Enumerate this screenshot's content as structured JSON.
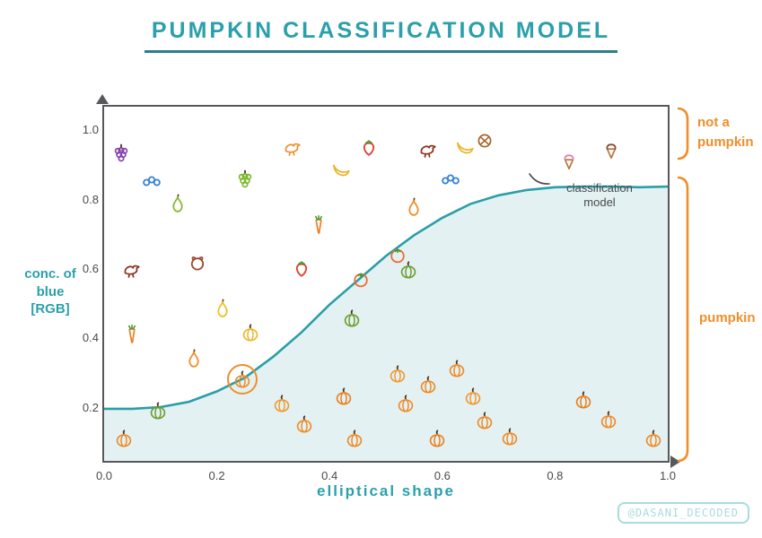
{
  "title": "PUMPKIN CLASSIFICATION MODEL",
  "watermark": "@DASANI_DECODED",
  "colors": {
    "accent_teal": "#2BA0AB",
    "curve_teal": "#2B9EA8",
    "curve_fill": "#E3F1F2",
    "bracket_orange": "#EF8F2A",
    "axis_gray": "#56585B",
    "tick_text": "#4A4A4A",
    "watermark_teal": "#A9DBDF"
  },
  "axes": {
    "x_label": "elliptical shape",
    "y_label_lines": [
      "conc. of",
      "blue",
      "[RGB]"
    ],
    "x_ticks": [
      {
        "label": "0.0",
        "value": 0.0
      },
      {
        "label": "0.2",
        "value": 0.2
      },
      {
        "label": "0.4",
        "value": 0.4
      },
      {
        "label": "0.6",
        "value": 0.6
      },
      {
        "label": "0.8",
        "value": 0.8
      },
      {
        "label": "1.0",
        "value": 1.0
      }
    ],
    "y_ticks": [
      {
        "label": "1.0",
        "value": 1.0
      },
      {
        "label": "0.8",
        "value": 0.8
      },
      {
        "label": "0.6",
        "value": 0.6
      },
      {
        "label": "0.4",
        "value": 0.4
      },
      {
        "label": "0.2",
        "value": 0.2
      }
    ]
  },
  "annotations": {
    "curve_label_lines": [
      "classification",
      "model"
    ]
  },
  "right_side": {
    "not_a_pumpkin_label_lines": [
      "not a",
      "pumpkin"
    ],
    "pumpkin_label": "pumpkin"
  },
  "chart_data": {
    "type": "scatter",
    "title": "PUMPKIN CLASSIFICATION MODEL",
    "xlabel": "elliptical shape",
    "ylabel": "conc. of blue [RGB]",
    "xlim": [
      0,
      1.0
    ],
    "ylim": [
      0,
      1.05
    ],
    "grid": false,
    "curve_style": {
      "color": "#2B9EA8",
      "fill": "#E3F1F2"
    },
    "curve": {
      "name": "classification model",
      "x": [
        0,
        0.05,
        0.1,
        0.15,
        0.2,
        0.25,
        0.3,
        0.35,
        0.4,
        0.45,
        0.5,
        0.55,
        0.6,
        0.65,
        0.7,
        0.75,
        0.8,
        0.85,
        0.9,
        0.95,
        1.0
      ],
      "y": [
        0.2,
        0.2,
        0.205,
        0.22,
        0.25,
        0.29,
        0.35,
        0.42,
        0.5,
        0.57,
        0.64,
        0.7,
        0.75,
        0.79,
        0.815,
        0.83,
        0.838,
        0.84,
        0.84,
        0.838,
        0.84
      ]
    },
    "regions": [
      {
        "label": "not a pumpkin",
        "side": "right",
        "y_from": 1.05,
        "y_to": 0.9
      },
      {
        "label": "pumpkin",
        "side": "right",
        "y_from": 0.86,
        "y_to": 0.05
      }
    ],
    "points": [
      {
        "name": "grapes",
        "color": "#8443A8",
        "x": 0.03,
        "y": 0.935
      },
      {
        "name": "blueberries",
        "icon": "berries",
        "color": "#3B82D4",
        "x": 0.085,
        "y": 0.855
      },
      {
        "name": "green-grapes",
        "icon": "grapes",
        "color": "#7CB82F",
        "x": 0.25,
        "y": 0.862
      },
      {
        "name": "duck",
        "icon": "bird",
        "color": "#E8912D",
        "x": 0.335,
        "y": 0.952
      },
      {
        "name": "banana",
        "color": "#E8B426",
        "x": 0.42,
        "y": 0.89
      },
      {
        "name": "strawberry",
        "color": "#E03C31",
        "x": 0.47,
        "y": 0.955
      },
      {
        "name": "rooster",
        "icon": "bird",
        "color": "#8C2F1B",
        "x": 0.575,
        "y": 0.945
      },
      {
        "name": "banana",
        "color": "#E8B426",
        "x": 0.64,
        "y": 0.955
      },
      {
        "name": "blueberries",
        "icon": "berries",
        "color": "#3B82D4",
        "x": 0.615,
        "y": 0.862
      },
      {
        "name": "pretzel",
        "color": "#A3642A",
        "x": 0.675,
        "y": 0.975
      },
      {
        "name": "ice-cream",
        "icon": "icecream",
        "color": "#E87BB1",
        "x": 0.825,
        "y": 0.915
      },
      {
        "name": "ice-cream",
        "icon": "icecream",
        "color": "#8C4A2F",
        "x": 0.9,
        "y": 0.945
      },
      {
        "name": "pear",
        "color": "#8AB833",
        "x": 0.13,
        "y": 0.79
      },
      {
        "name": "carrot",
        "color": "#EF7D24",
        "x": 0.38,
        "y": 0.73
      },
      {
        "name": "pear",
        "color": "#EF8F2A",
        "x": 0.55,
        "y": 0.78
      },
      {
        "name": "tomato",
        "color": "#EF6A30",
        "x": 0.52,
        "y": 0.645
      },
      {
        "name": "rooster",
        "icon": "bird",
        "color": "#8C2F1B",
        "x": 0.05,
        "y": 0.6
      },
      {
        "name": "dog",
        "color": "#9C4A2F",
        "x": 0.165,
        "y": 0.62
      },
      {
        "name": "strawberry",
        "color": "#E03C31",
        "x": 0.35,
        "y": 0.605
      },
      {
        "name": "tomato",
        "color": "#EF6A30",
        "x": 0.455,
        "y": 0.575
      },
      {
        "name": "green-squash",
        "icon": "pumpkin",
        "color": "#6D9C2F",
        "x": 0.54,
        "y": 0.6
      },
      {
        "name": "yellow-pear",
        "icon": "pear",
        "color": "#E8C326",
        "x": 0.21,
        "y": 0.49
      },
      {
        "name": "carrot",
        "color": "#EF7D24",
        "x": 0.05,
        "y": 0.415
      },
      {
        "name": "yellow-squash",
        "icon": "pumpkin",
        "color": "#EFB52A",
        "x": 0.26,
        "y": 0.42
      },
      {
        "name": "green-squash",
        "icon": "pumpkin",
        "color": "#6D9C2F",
        "x": 0.44,
        "y": 0.46
      },
      {
        "name": "pear",
        "color": "#EF8F2A",
        "x": 0.16,
        "y": 0.345
      },
      {
        "name": "pumpkin",
        "color": "#EF8A26",
        "x": 0.035,
        "y": 0.115
      },
      {
        "name": "pumpkin",
        "color": "#6D9C2F",
        "x": 0.095,
        "y": 0.195
      },
      {
        "name": "pumpkin",
        "color": "#EF8A26",
        "x": 0.245,
        "y": 0.285,
        "highlight": true
      },
      {
        "name": "pumpkin",
        "color": "#F09A30",
        "x": 0.315,
        "y": 0.215
      },
      {
        "name": "pumpkin",
        "color": "#EF8A26",
        "x": 0.355,
        "y": 0.155
      },
      {
        "name": "pumpkin",
        "color": "#E87F1F",
        "x": 0.425,
        "y": 0.235
      },
      {
        "name": "pumpkin",
        "color": "#EF8A26",
        "x": 0.445,
        "y": 0.115
      },
      {
        "name": "pumpkin",
        "color": "#F09A30",
        "x": 0.52,
        "y": 0.3
      },
      {
        "name": "pumpkin",
        "color": "#EF8A26",
        "x": 0.535,
        "y": 0.215
      },
      {
        "name": "pumpkin",
        "color": "#EF8A26",
        "x": 0.575,
        "y": 0.27
      },
      {
        "name": "pumpkin",
        "color": "#E87F1F",
        "x": 0.59,
        "y": 0.115
      },
      {
        "name": "pumpkin",
        "color": "#EF8A26",
        "x": 0.625,
        "y": 0.315
      },
      {
        "name": "pumpkin",
        "color": "#F09A30",
        "x": 0.655,
        "y": 0.235
      },
      {
        "name": "pumpkin",
        "color": "#EF8A26",
        "x": 0.675,
        "y": 0.165
      },
      {
        "name": "pumpkin",
        "color": "#EF8A26",
        "x": 0.72,
        "y": 0.12
      },
      {
        "name": "pumpkin",
        "color": "#E87F1F",
        "x": 0.85,
        "y": 0.225
      },
      {
        "name": "pumpkin",
        "color": "#EF8A26",
        "x": 0.895,
        "y": 0.17
      },
      {
        "name": "pumpkin",
        "color": "#EF8A26",
        "x": 0.975,
        "y": 0.115
      }
    ]
  }
}
